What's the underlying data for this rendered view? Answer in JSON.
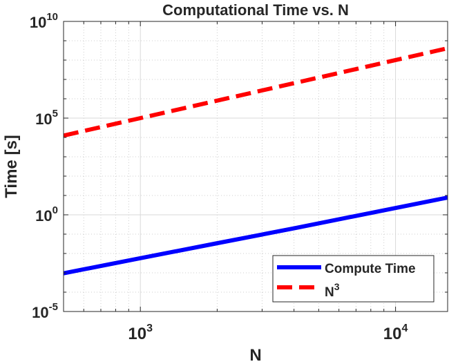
{
  "chart_data": {
    "type": "line",
    "title": "Computational Time vs. N",
    "xlabel": "N",
    "ylabel": "Time [s]",
    "xscale": "log",
    "yscale": "log",
    "xlim": [
      500,
      16000
    ],
    "ylim": [
      1e-05,
      10000000000.0
    ],
    "grid": true,
    "minor_grid": true,
    "legend_position": "bottom-right",
    "x_ticks": [
      {
        "value": 1000,
        "base": "10",
        "exp": "3"
      },
      {
        "value": 10000,
        "base": "10",
        "exp": "4"
      }
    ],
    "y_ticks": [
      {
        "value": 1e-05,
        "base": "10",
        "exp": "-5"
      },
      {
        "value": 1,
        "base": "10",
        "exp": "0"
      },
      {
        "value": 100000.0,
        "base": "10",
        "exp": "5"
      },
      {
        "value": 10000000000.0,
        "base": "10",
        "exp": "10"
      }
    ],
    "series": [
      {
        "name": "Compute Time",
        "color": "#0000ff",
        "dash": "solid",
        "x": [
          500,
          1000,
          2000,
          4000,
          8000,
          16000
        ],
        "y": [
          0.00095,
          0.0057,
          0.034,
          0.2,
          1.25,
          7.8
        ]
      },
      {
        "name": "N",
        "name_sup": "3",
        "color": "#ff0000",
        "dash": "dashed",
        "x": [
          500,
          1000,
          2000,
          4000,
          8000,
          16000
        ],
        "y": [
          12500.0,
          100000.0,
          800000.0,
          6400000.0,
          51200000.0,
          409600000.0
        ]
      }
    ]
  }
}
